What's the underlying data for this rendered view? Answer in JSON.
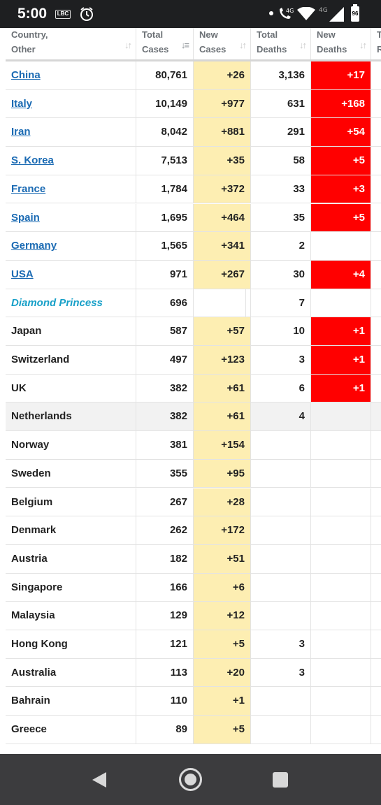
{
  "status": {
    "time": "5:00",
    "badge": "LBC",
    "net_label": "4G",
    "net_label2": "4G",
    "battery": "96"
  },
  "columns": [
    {
      "line1": "Country,",
      "line2": "Other"
    },
    {
      "line1": "Total",
      "line2": "Cases"
    },
    {
      "line1": "New",
      "line2": "Cases"
    },
    {
      "line1": "Total",
      "line2": "Deaths"
    },
    {
      "line1": "New",
      "line2": "Deaths"
    },
    {
      "line1": "T",
      "line2": "R"
    }
  ],
  "rows": [
    {
      "country": "China",
      "total_cases": "80,761",
      "new_cases": "+26",
      "total_deaths": "3,136",
      "new_deaths": "+17"
    },
    {
      "country": "Italy",
      "total_cases": "10,149",
      "new_cases": "+977",
      "total_deaths": "631",
      "new_deaths": "+168"
    },
    {
      "country": "Iran",
      "total_cases": "8,042",
      "new_cases": "+881",
      "total_deaths": "291",
      "new_deaths": "+54"
    },
    {
      "country": "S. Korea",
      "total_cases": "7,513",
      "new_cases": "+35",
      "total_deaths": "58",
      "new_deaths": "+5"
    },
    {
      "country": "France",
      "total_cases": "1,784",
      "new_cases": "+372",
      "total_deaths": "33",
      "new_deaths": "+3"
    },
    {
      "country": "Spain",
      "total_cases": "1,695",
      "new_cases": "+464",
      "total_deaths": "35",
      "new_deaths": "+5"
    },
    {
      "country": "Germany",
      "total_cases": "1,565",
      "new_cases": "+341",
      "total_deaths": "2",
      "new_deaths": ""
    },
    {
      "country": "USA",
      "total_cases": "971",
      "new_cases": "+267",
      "total_deaths": "30",
      "new_deaths": "+4"
    },
    {
      "country": "Diamond Princess",
      "total_cases": "696",
      "new_cases": "",
      "total_deaths": "7",
      "new_deaths": ""
    },
    {
      "country": "Japan",
      "total_cases": "587",
      "new_cases": "+57",
      "total_deaths": "10",
      "new_deaths": "+1"
    },
    {
      "country": "Switzerland",
      "total_cases": "497",
      "new_cases": "+123",
      "total_deaths": "3",
      "new_deaths": "+1"
    },
    {
      "country": "UK",
      "total_cases": "382",
      "new_cases": "+61",
      "total_deaths": "6",
      "new_deaths": "+1"
    },
    {
      "country": "Netherlands",
      "total_cases": "382",
      "new_cases": "+61",
      "total_deaths": "4",
      "new_deaths": ""
    },
    {
      "country": "Norway",
      "total_cases": "381",
      "new_cases": "+154",
      "total_deaths": "",
      "new_deaths": ""
    },
    {
      "country": "Sweden",
      "total_cases": "355",
      "new_cases": "+95",
      "total_deaths": "",
      "new_deaths": ""
    },
    {
      "country": "Belgium",
      "total_cases": "267",
      "new_cases": "+28",
      "total_deaths": "",
      "new_deaths": ""
    },
    {
      "country": "Denmark",
      "total_cases": "262",
      "new_cases": "+172",
      "total_deaths": "",
      "new_deaths": ""
    },
    {
      "country": "Austria",
      "total_cases": "182",
      "new_cases": "+51",
      "total_deaths": "",
      "new_deaths": ""
    },
    {
      "country": "Singapore",
      "total_cases": "166",
      "new_cases": "+6",
      "total_deaths": "",
      "new_deaths": ""
    },
    {
      "country": "Malaysia",
      "total_cases": "129",
      "new_cases": "+12",
      "total_deaths": "",
      "new_deaths": ""
    },
    {
      "country": "Hong Kong",
      "total_cases": "121",
      "new_cases": "+5",
      "total_deaths": "3",
      "new_deaths": ""
    },
    {
      "country": "Australia",
      "total_cases": "113",
      "new_cases": "+20",
      "total_deaths": "3",
      "new_deaths": ""
    },
    {
      "country": "Bahrain",
      "total_cases": "110",
      "new_cases": "+1",
      "total_deaths": "",
      "new_deaths": ""
    },
    {
      "country": "Greece",
      "total_cases": "89",
      "new_cases": "+5",
      "total_deaths": "",
      "new_deaths": ""
    }
  ],
  "colors": {
    "new_cases_bg": "#fdeeb2",
    "new_deaths_bg": "#ff0000",
    "link": "#1a6ab3",
    "special_entry": "#18a0c8"
  },
  "icons": {
    "alarm": "alarm-clock-icon",
    "call": "wifi-calling-icon",
    "wifi": "wifi-icon",
    "signal": "cell-signal-icon",
    "battery": "battery-icon",
    "back": "back-triangle-icon",
    "home": "home-circle-icon",
    "recents": "recents-square-icon"
  }
}
